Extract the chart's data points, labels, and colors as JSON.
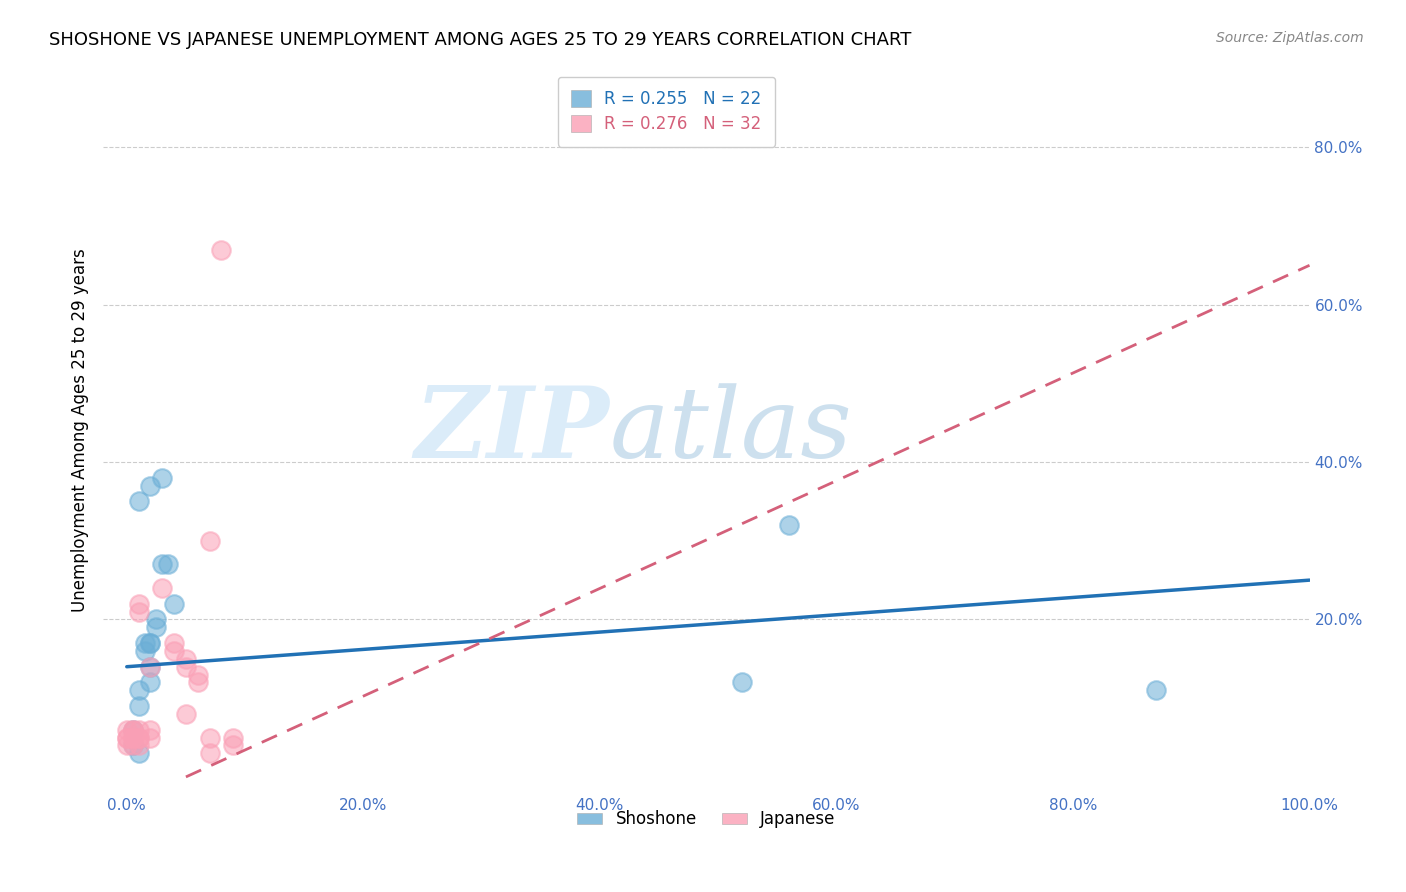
{
  "title": "SHOSHONE VS JAPANESE UNEMPLOYMENT AMONG AGES 25 TO 29 YEARS CORRELATION CHART",
  "source": "Source: ZipAtlas.com",
  "ylabel": "Unemployment Among Ages 25 to 29 years",
  "xlabel": "",
  "background_color": "#ffffff",
  "watermark_zip": "ZIP",
  "watermark_atlas": "atlas",
  "shoshone_color": "#6baed6",
  "japanese_color": "#fa9fb5",
  "shoshone_line_color": "#2171b5",
  "japanese_line_color": "#d4607a",
  "shoshone_R": 0.255,
  "shoshone_N": 22,
  "japanese_R": 0.276,
  "japanese_N": 32,
  "xlim": [
    -0.02,
    1.0
  ],
  "ylim": [
    -0.02,
    0.9
  ],
  "xticks": [
    0.0,
    0.2,
    0.4,
    0.6,
    0.8,
    1.0
  ],
  "yticks": [
    0.2,
    0.4,
    0.6,
    0.8
  ],
  "xticklabels": [
    "0.0%",
    "20.0%",
    "40.0%",
    "60.0%",
    "80.0%",
    "100.0%"
  ],
  "yticklabels": [
    "20.0%",
    "40.0%",
    "60.0%",
    "80.0%"
  ],
  "shoshone_x": [
    0.005,
    0.005,
    0.01,
    0.015,
    0.02,
    0.02,
    0.02,
    0.02,
    0.025,
    0.025,
    0.03,
    0.035,
    0.04,
    0.01,
    0.01,
    0.015,
    0.02,
    0.03,
    0.52,
    0.56,
    0.87,
    0.01
  ],
  "shoshone_y": [
    0.04,
    0.06,
    0.03,
    0.16,
    0.17,
    0.17,
    0.12,
    0.14,
    0.2,
    0.19,
    0.27,
    0.27,
    0.22,
    0.11,
    0.09,
    0.17,
    0.37,
    0.38,
    0.12,
    0.32,
    0.11,
    0.35
  ],
  "japanese_x": [
    0.0,
    0.0,
    0.0,
    0.0,
    0.005,
    0.005,
    0.005,
    0.005,
    0.005,
    0.01,
    0.01,
    0.01,
    0.01,
    0.01,
    0.01,
    0.02,
    0.02,
    0.02,
    0.03,
    0.04,
    0.04,
    0.05,
    0.05,
    0.05,
    0.06,
    0.06,
    0.07,
    0.07,
    0.07,
    0.08,
    0.09,
    0.09
  ],
  "japanese_y": [
    0.04,
    0.05,
    0.06,
    0.05,
    0.04,
    0.05,
    0.06,
    0.05,
    0.06,
    0.04,
    0.05,
    0.06,
    0.05,
    0.22,
    0.21,
    0.14,
    0.05,
    0.06,
    0.24,
    0.17,
    0.16,
    0.15,
    0.14,
    0.08,
    0.13,
    0.12,
    0.05,
    0.3,
    0.03,
    0.67,
    0.04,
    0.05
  ],
  "shoshone_trend_x0": 0.0,
  "shoshone_trend_y0": 0.14,
  "shoshone_trend_x1": 1.0,
  "shoshone_trend_y1": 0.25,
  "japanese_trend_x0": 0.05,
  "japanese_trend_y0": 0.0,
  "japanese_trend_x1": 1.0,
  "japanese_trend_y1": 0.65,
  "grid_color": "#cccccc",
  "tick_color": "#4472c4",
  "title_fontsize": 13,
  "axis_label_fontsize": 12,
  "tick_fontsize": 11,
  "legend_fontsize": 12
}
